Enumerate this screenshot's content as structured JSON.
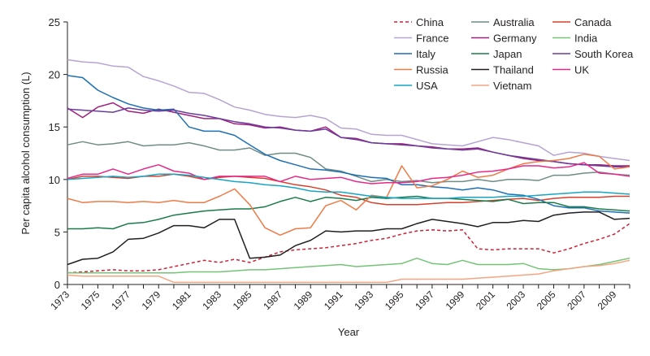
{
  "chart_data": {
    "type": "line",
    "title": "",
    "xlabel": "Year",
    "ylabel": "Per capita alcohol consumption (L)",
    "xlim": [
      1973,
      2010
    ],
    "ylim": [
      0,
      25
    ],
    "yticks": [
      0,
      5,
      10,
      15,
      20,
      25
    ],
    "xtick_labels": [
      "1973",
      "1975",
      "1977",
      "1979",
      "1981",
      "1983",
      "1985",
      "1987",
      "1989",
      "1991",
      "1993",
      "1995",
      "1997",
      "1999",
      "2001",
      "2003",
      "2005",
      "2007",
      "2009"
    ],
    "grid": false,
    "legend_position": "top-right",
    "x": [
      1973,
      1974,
      1975,
      1976,
      1977,
      1978,
      1979,
      1980,
      1981,
      1982,
      1983,
      1984,
      1985,
      1986,
      1987,
      1988,
      1989,
      1990,
      1991,
      1992,
      1993,
      1994,
      1995,
      1996,
      1997,
      1998,
      1999,
      2000,
      2001,
      2002,
      2003,
      2004,
      2005,
      2006,
      2007,
      2008,
      2009,
      2010
    ],
    "series": [
      {
        "name": "China",
        "color": "#c8243a",
        "dash": true,
        "values": [
          1.1,
          1.2,
          1.3,
          1.4,
          1.3,
          1.3,
          1.4,
          1.7,
          2.0,
          2.3,
          2.1,
          2.4,
          2.1,
          2.6,
          3.1,
          3.3,
          3.4,
          3.5,
          3.7,
          3.9,
          4.2,
          4.4,
          4.8,
          5.1,
          5.2,
          5.1,
          5.2,
          3.4,
          3.3,
          3.4,
          3.4,
          3.4,
          3.0,
          3.4,
          3.9,
          4.3,
          4.8,
          5.8
        ]
      },
      {
        "name": "Australia",
        "color": "#6f8c86",
        "values": [
          13.3,
          13.6,
          13.3,
          13.4,
          13.6,
          13.2,
          13.3,
          13.3,
          13.5,
          13.2,
          12.8,
          12.8,
          13.0,
          12.3,
          12.5,
          12.5,
          12.1,
          11.0,
          10.8,
          10.3,
          9.8,
          10.0,
          9.8,
          9.9,
          9.7,
          9.8,
          9.8,
          10.0,
          9.8,
          10.0,
          10.0,
          9.9,
          10.4,
          10.4,
          10.6,
          10.7,
          10.5,
          10.4
        ]
      },
      {
        "name": "Canada",
        "color": "#d6402c",
        "values": [
          10.0,
          10.3,
          10.3,
          10.2,
          10.1,
          10.3,
          10.3,
          10.5,
          10.3,
          10.0,
          10.2,
          10.3,
          10.2,
          10.1,
          9.8,
          9.5,
          9.3,
          9.0,
          8.5,
          8.3,
          7.8,
          7.6,
          7.6,
          7.6,
          7.7,
          7.8,
          7.8,
          7.9,
          8.0,
          8.1,
          8.2,
          8.0,
          8.2,
          8.3,
          8.3,
          8.3,
          8.4,
          8.4
        ]
      },
      {
        "name": "France",
        "color": "#b7a3d2",
        "values": [
          21.4,
          21.2,
          21.1,
          20.8,
          20.7,
          19.8,
          19.4,
          18.9,
          18.3,
          18.2,
          17.6,
          16.9,
          16.6,
          16.2,
          16.0,
          15.9,
          16.1,
          15.8,
          14.9,
          14.8,
          14.3,
          14.2,
          14.2,
          13.8,
          13.4,
          13.3,
          13.2,
          13.6,
          14.0,
          13.8,
          13.5,
          13.2,
          12.3,
          12.6,
          12.5,
          12.2,
          12.0,
          11.8
        ]
      },
      {
        "name": "Germany",
        "color": "#a0207e",
        "values": [
          16.8,
          15.9,
          16.9,
          17.3,
          16.5,
          16.3,
          16.7,
          16.4,
          16.1,
          15.8,
          15.8,
          15.3,
          15.2,
          14.9,
          15.0,
          14.7,
          14.6,
          15.0,
          14.0,
          13.9,
          13.5,
          13.4,
          13.4,
          13.2,
          13.1,
          12.9,
          12.9,
          13.0,
          12.6,
          12.3,
          12.0,
          11.8,
          11.7,
          11.5,
          11.4,
          11.4,
          11.3,
          11.3
        ]
      },
      {
        "name": "India",
        "color": "#74c476",
        "values": [
          1.1,
          1.1,
          1.1,
          1.1,
          1.1,
          1.1,
          1.1,
          1.1,
          1.2,
          1.2,
          1.2,
          1.3,
          1.4,
          1.4,
          1.5,
          1.6,
          1.7,
          1.8,
          1.9,
          1.7,
          1.8,
          1.9,
          2.0,
          2.5,
          2.0,
          1.9,
          2.3,
          1.9,
          1.9,
          1.9,
          2.0,
          1.5,
          1.4,
          1.5,
          1.7,
          1.9,
          2.2,
          2.5
        ]
      },
      {
        "name": "Italy",
        "color": "#1e6fb4",
        "values": [
          19.9,
          19.7,
          18.5,
          17.8,
          17.2,
          16.8,
          16.6,
          16.7,
          15.0,
          14.6,
          14.6,
          14.2,
          13.3,
          12.4,
          11.8,
          11.4,
          11.0,
          10.9,
          10.7,
          10.4,
          10.2,
          10.1,
          9.5,
          9.5,
          9.3,
          9.2,
          9.0,
          9.2,
          9.0,
          8.6,
          8.5,
          8.1,
          7.5,
          7.3,
          7.3,
          7.0,
          6.9,
          6.8
        ]
      },
      {
        "name": "Japan",
        "color": "#1a7b4a",
        "values": [
          5.3,
          5.3,
          5.4,
          5.3,
          5.8,
          5.9,
          6.2,
          6.6,
          6.8,
          7.0,
          7.1,
          7.2,
          7.2,
          7.4,
          7.9,
          8.3,
          7.9,
          8.3,
          8.2,
          8.0,
          8.3,
          8.2,
          8.3,
          8.4,
          8.2,
          8.2,
          8.1,
          8.0,
          7.9,
          8.1,
          7.7,
          7.8,
          7.8,
          7.4,
          7.4,
          7.2,
          7.1,
          7.0
        ]
      },
      {
        "name": "South Korea",
        "color": "#6a3d9a",
        "values": [
          16.7,
          16.6,
          16.5,
          16.4,
          16.8,
          16.6,
          16.5,
          16.6,
          16.3,
          16.1,
          15.8,
          15.5,
          15.3,
          15.0,
          14.9,
          14.7,
          14.6,
          14.8,
          14.0,
          13.8,
          13.5,
          13.4,
          13.3,
          13.2,
          13.0,
          12.9,
          12.8,
          12.9,
          12.6,
          12.3,
          12.1,
          11.9,
          11.7,
          11.5,
          11.4,
          11.3,
          11.2,
          11.2
        ]
      },
      {
        "name": "Russia",
        "color": "#ee7b47",
        "values": [
          8.2,
          7.8,
          7.9,
          7.9,
          7.8,
          7.9,
          7.8,
          8.0,
          7.8,
          7.8,
          8.4,
          9.1,
          7.6,
          5.4,
          4.7,
          5.3,
          5.4,
          7.5,
          8.0,
          7.1,
          8.5,
          8.3,
          11.3,
          9.2,
          9.4,
          10.0,
          10.8,
          10.2,
          10.4,
          11.0,
          11.5,
          11.7,
          11.8,
          12.0,
          12.4,
          12.2,
          11.0,
          11.2
        ]
      },
      {
        "name": "Thailand",
        "color": "#231f20",
        "values": [
          1.9,
          2.4,
          2.5,
          3.1,
          4.3,
          4.4,
          4.9,
          5.6,
          5.6,
          5.4,
          6.2,
          6.2,
          2.5,
          2.6,
          2.8,
          3.7,
          4.2,
          5.1,
          5.0,
          5.1,
          5.1,
          5.3,
          5.3,
          5.8,
          6.2,
          6.0,
          5.8,
          5.5,
          5.9,
          5.9,
          6.1,
          6.0,
          6.6,
          6.8,
          6.9,
          6.9,
          6.2,
          6.3
        ]
      },
      {
        "name": "UK",
        "color": "#e7298a",
        "values": [
          10.1,
          10.5,
          10.5,
          11.0,
          10.5,
          11.0,
          11.4,
          10.8,
          10.6,
          10.0,
          10.3,
          10.3,
          10.3,
          10.3,
          9.8,
          10.3,
          10.0,
          10.1,
          10.2,
          9.8,
          9.6,
          9.7,
          9.7,
          9.8,
          10.1,
          10.2,
          10.4,
          10.7,
          10.8,
          11.0,
          11.3,
          11.3,
          11.1,
          11.2,
          11.6,
          10.6,
          10.5,
          10.3
        ]
      },
      {
        "name": "USA",
        "color": "#17a5c4",
        "values": [
          10.0,
          10.1,
          10.2,
          10.3,
          10.2,
          10.3,
          10.5,
          10.5,
          10.4,
          10.2,
          10.0,
          9.8,
          9.7,
          9.5,
          9.4,
          9.2,
          8.9,
          8.8,
          8.8,
          8.6,
          8.4,
          8.3,
          8.2,
          8.2,
          8.2,
          8.2,
          8.3,
          8.3,
          8.3,
          8.4,
          8.4,
          8.5,
          8.6,
          8.7,
          8.8,
          8.8,
          8.7,
          8.6
        ]
      },
      {
        "name": "Vietnam",
        "color": "#f4a582",
        "values": [
          0.9,
          0.8,
          0.8,
          0.8,
          0.8,
          0.8,
          0.8,
          0.2,
          0.2,
          0.2,
          0.2,
          0.2,
          0.2,
          0.2,
          0.2,
          0.2,
          0.2,
          0.2,
          0.2,
          0.2,
          0.2,
          0.2,
          0.5,
          0.5,
          0.5,
          0.5,
          0.5,
          0.6,
          0.7,
          0.8,
          0.9,
          1.0,
          1.3,
          1.5,
          1.7,
          1.8,
          2.0,
          2.3
        ]
      }
    ]
  }
}
